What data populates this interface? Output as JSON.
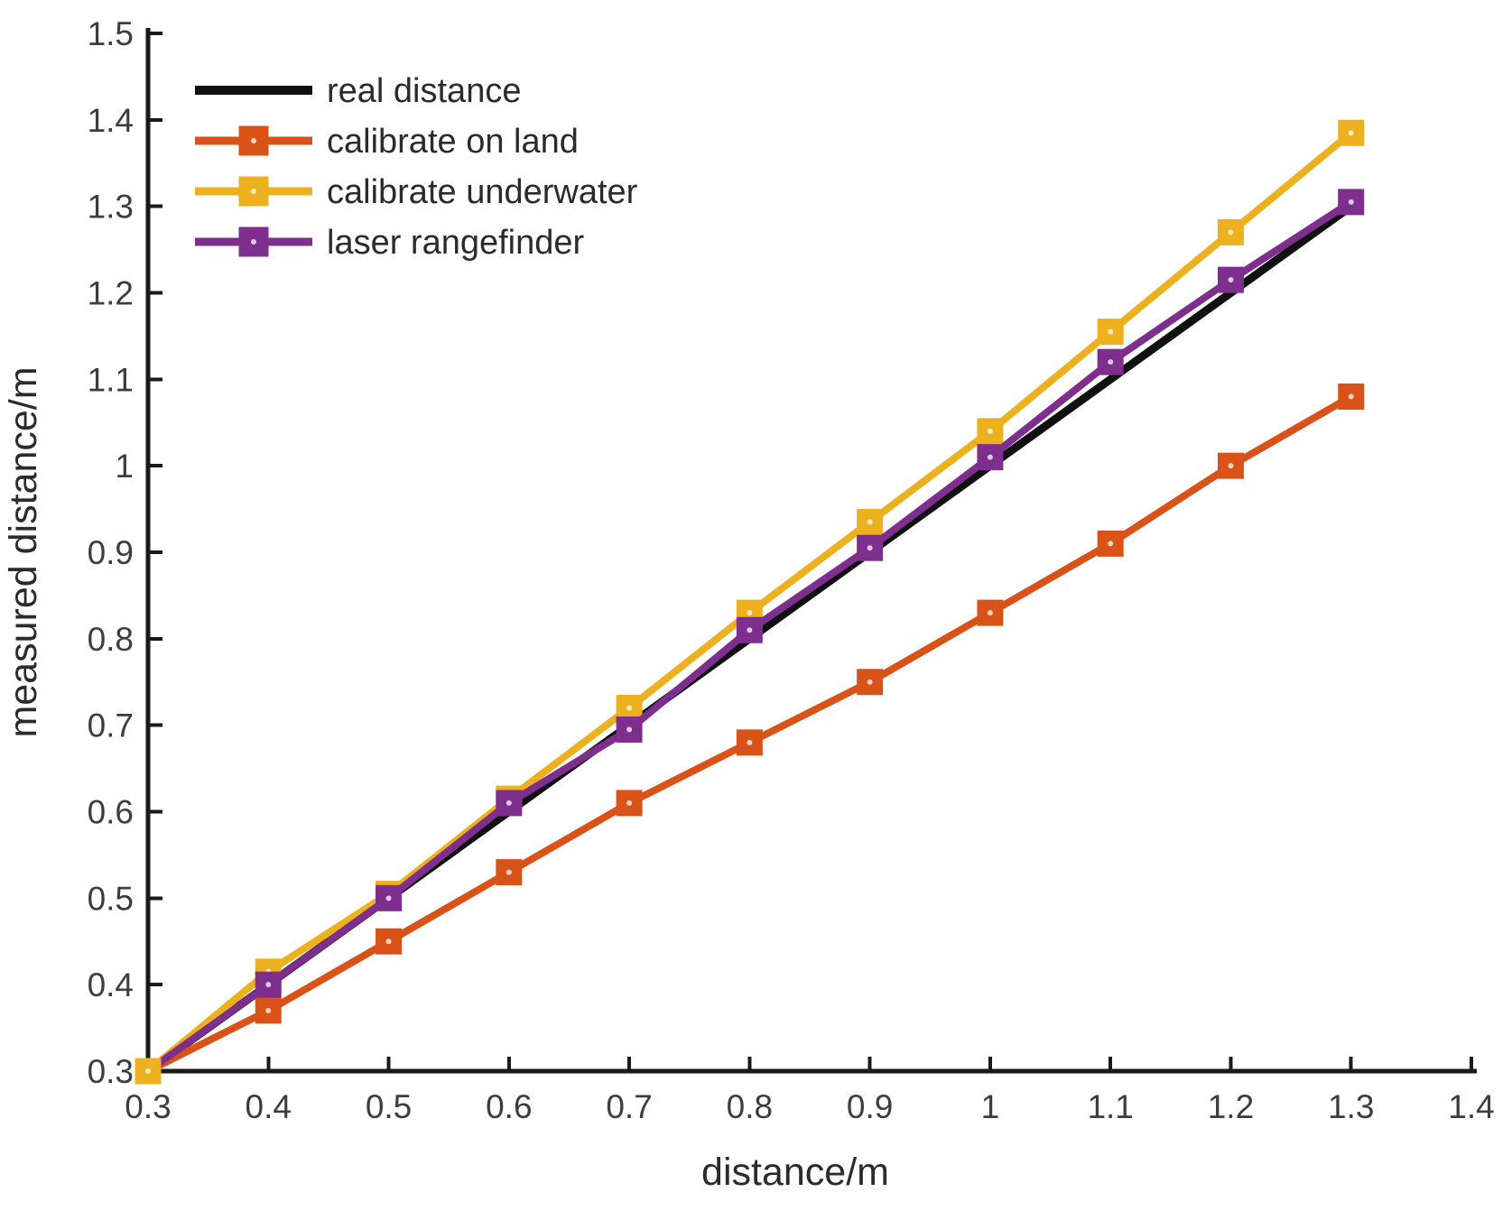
{
  "chart_data": {
    "type": "line",
    "title": "",
    "xlabel": "distance/m",
    "ylabel": "measured distance/m",
    "xlim": [
      0.3,
      1.4
    ],
    "ylim": [
      0.3,
      1.5
    ],
    "xticks": [
      0.3,
      0.4,
      0.5,
      0.6,
      0.7,
      0.8,
      0.9,
      1.0,
      1.1,
      1.2,
      1.3,
      1.4
    ],
    "xtick_labels": [
      "0.3",
      "0.4",
      "0.5",
      "0.6",
      "0.7",
      "0.8",
      "0.9",
      "1",
      "1.1",
      "1.2",
      "1.3",
      "1.4"
    ],
    "yticks": [
      0.3,
      0.4,
      0.5,
      0.6,
      0.7,
      0.8,
      0.9,
      1.0,
      1.1,
      1.2,
      1.3,
      1.4,
      1.5
    ],
    "ytick_labels": [
      "0.3",
      "0.4",
      "0.5",
      "0.6",
      "0.7",
      "0.8",
      "0.9",
      "1",
      "1.1",
      "1.2",
      "1.3",
      "1.4",
      "1.5"
    ],
    "grid": false,
    "legend_position": "top-left",
    "axis_color": "#1a1a1a",
    "tick_label_color": "#3d3d3d",
    "series": [
      {
        "name": "real distance",
        "color": "#111111",
        "marker": "none",
        "linewidth": 9,
        "x": [
          0.3,
          1.3
        ],
        "values": [
          0.3,
          1.3
        ]
      },
      {
        "name": "calibrate on land",
        "color": "#d95319",
        "marker": "square",
        "linewidth": 8,
        "x": [
          0.3,
          0.4,
          0.5,
          0.6,
          0.7,
          0.8,
          0.9,
          1.0,
          1.1,
          1.2,
          1.3
        ],
        "values": [
          0.3,
          0.37,
          0.45,
          0.53,
          0.61,
          0.68,
          0.75,
          0.83,
          0.91,
          1.0,
          1.08
        ]
      },
      {
        "name": "calibrate underwater",
        "color": "#edb120",
        "marker": "square",
        "linewidth": 8,
        "x": [
          0.3,
          0.4,
          0.5,
          0.6,
          0.7,
          0.8,
          0.9,
          1.0,
          1.1,
          1.2,
          1.3
        ],
        "values": [
          0.3,
          0.415,
          0.505,
          0.615,
          0.72,
          0.83,
          0.935,
          1.04,
          1.155,
          1.27,
          1.385
        ]
      },
      {
        "name": "laser rangefinder",
        "color": "#7e2f8e",
        "marker": "square",
        "linewidth": 8,
        "x": [
          0.3,
          0.4,
          0.5,
          0.6,
          0.7,
          0.8,
          0.9,
          1.0,
          1.1,
          1.2,
          1.3
        ],
        "values": [
          0.3,
          0.4,
          0.5,
          0.61,
          0.695,
          0.81,
          0.905,
          1.01,
          1.12,
          1.215,
          1.305
        ]
      }
    ]
  }
}
